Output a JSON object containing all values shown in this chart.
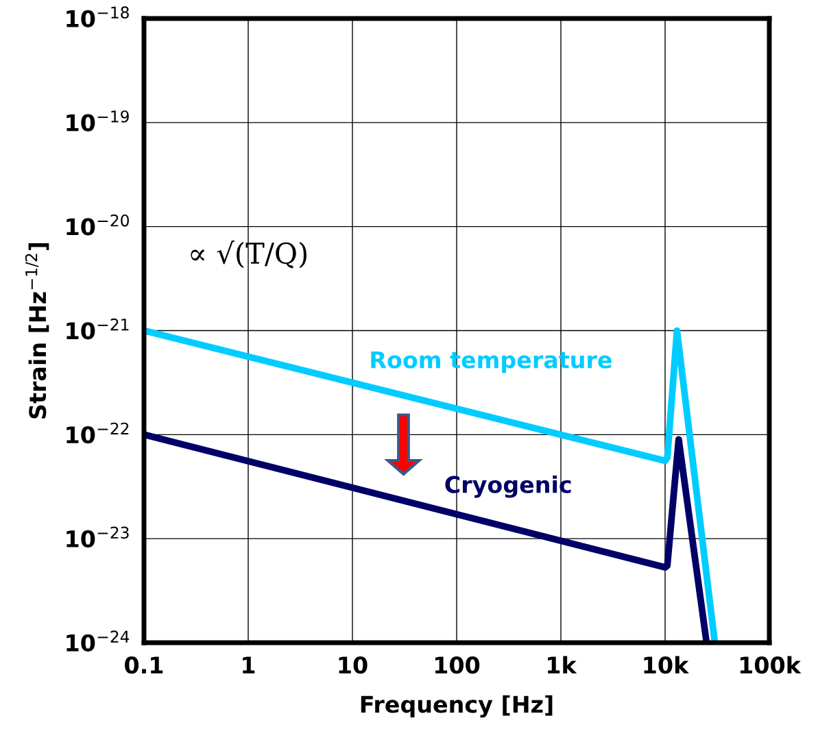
{
  "chart_data": {
    "type": "line",
    "xlabel": "Frequency [Hz]",
    "ylabel": "Strain [Hz$^{−1/2}$]",
    "log": "xy",
    "xlim": [
      0.1,
      100000
    ],
    "xticks": [
      {
        "value": 0.1,
        "label": "0.1"
      },
      {
        "value": 1,
        "label": "1"
      },
      {
        "value": 10,
        "label": "10"
      },
      {
        "value": 100,
        "label": "100"
      },
      {
        "value": 1000,
        "label": "1k"
      },
      {
        "value": 10000,
        "label": "10k"
      },
      {
        "value": 100000,
        "label": "100k"
      }
    ],
    "ylim": [
      1e-24,
      1e-18
    ],
    "yticks": [
      {
        "value": 1e-24,
        "label": "10$^{−24}$"
      },
      {
        "value": 1e-23,
        "label": "10$^{−23}$"
      },
      {
        "value": 1e-22,
        "label": "10$^{−22}$"
      },
      {
        "value": 1e-21,
        "label": "10$^{−21}$"
      },
      {
        "value": 1e-20,
        "label": "10$^{−20}$"
      },
      {
        "value": 1e-19,
        "label": "10$^{−19}$"
      },
      {
        "value": 1e-18,
        "label": "10$^{−18}$"
      }
    ],
    "grid": true,
    "legend": false,
    "marker": "none",
    "line_style": "solid",
    "series": [
      {
        "name": "Room temperature",
        "color": "#00ccff",
        "x": [
          0.1,
          10000,
          10500,
          13000,
          30000
        ],
        "values": [
          1e-21,
          5.6e-23,
          6e-23,
          1e-21,
          1e-24
        ]
      },
      {
        "name": "Cryogenic",
        "color": "#000066",
        "x": [
          0.1,
          10000,
          10500,
          13500,
          25000
        ],
        "values": [
          1e-22,
          5.3e-24,
          5.5e-24,
          9e-23,
          1e-24
        ]
      }
    ],
    "annotations": [
      "∝ √(T/Q)"
    ]
  }
}
